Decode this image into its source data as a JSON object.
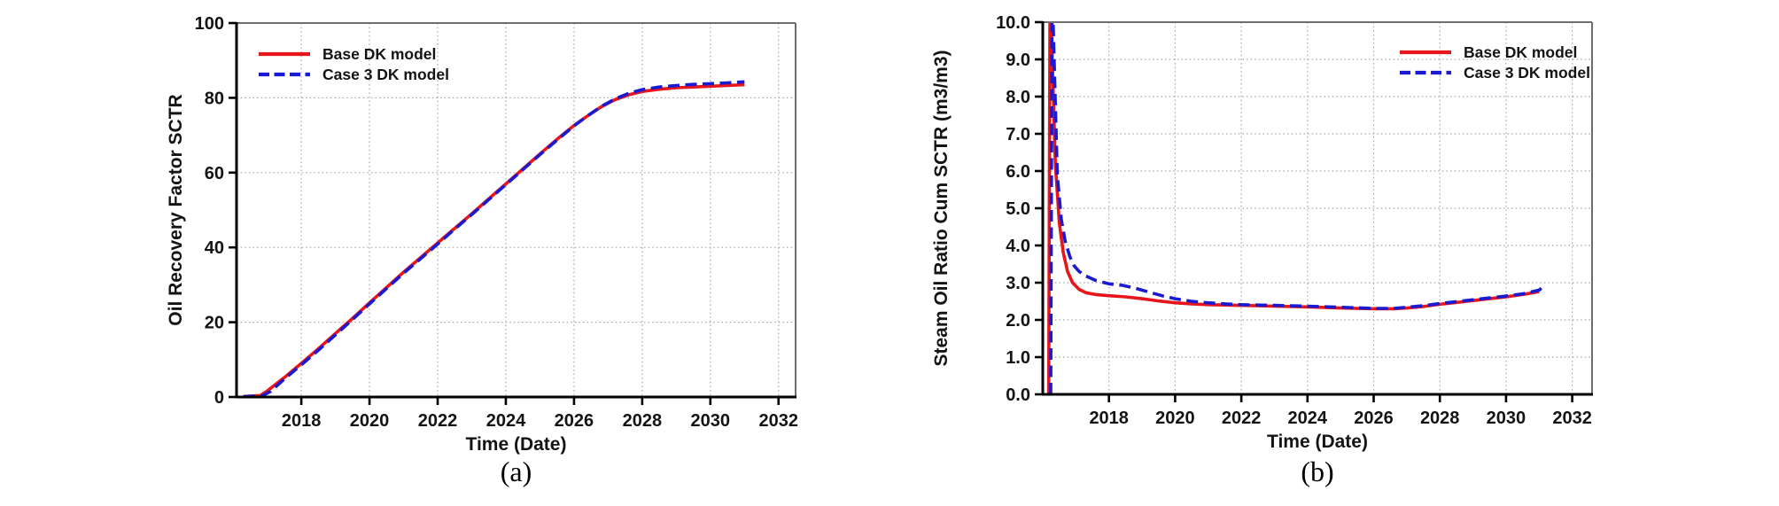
{
  "figure": {
    "background": "#ffffff",
    "text_color": "#141414",
    "grid_color": "#ababab",
    "axis_color": "#000000",
    "frame_color": "#6e6e6e"
  },
  "chart_data": [
    {
      "type": "line",
      "caption": "(a)",
      "xlabel": "Time (Date)",
      "ylabel": "Oil Recovery Factor SCTR",
      "xlim": [
        2016.1,
        2032.5
      ],
      "ylim": [
        0,
        100
      ],
      "x_ticks": [
        2018,
        2020,
        2022,
        2024,
        2026,
        2028,
        2030,
        2032
      ],
      "x_tick_labels": [
        "2018",
        "2020",
        "2022",
        "2024",
        "2026",
        "2028",
        "2030",
        "2032"
      ],
      "y_ticks": [
        0,
        20,
        40,
        60,
        80,
        100
      ],
      "y_tick_labels": [
        "0",
        "20",
        "40",
        "60",
        "80",
        "100"
      ],
      "grid": true,
      "legend_position": "top-left",
      "series": [
        {
          "name": "Base DK model",
          "color": "#e8151b",
          "style": "solid",
          "points": [
            [
              2016.3,
              0.15
            ],
            [
              2016.8,
              0.4
            ],
            [
              2017.0,
              1.6
            ],
            [
              2017.5,
              5.2
            ],
            [
              2018,
              9.0
            ],
            [
              2018.5,
              12.9
            ],
            [
              2019,
              17.0
            ],
            [
              2019.5,
              21.0
            ],
            [
              2020,
              25.2
            ],
            [
              2020.5,
              29.3
            ],
            [
              2021,
              33.4
            ],
            [
              2021.5,
              37.3
            ],
            [
              2022,
              41.2
            ],
            [
              2022.5,
              45.1
            ],
            [
              2023,
              49.0
            ],
            [
              2023.5,
              53.0
            ],
            [
              2024,
              57.0
            ],
            [
              2024.5,
              61.0
            ],
            [
              2025,
              65.0
            ],
            [
              2025.5,
              68.9
            ],
            [
              2026,
              72.6
            ],
            [
              2026.4,
              75.2
            ],
            [
              2026.8,
              77.6
            ],
            [
              2027.2,
              79.5
            ],
            [
              2027.6,
              80.8
            ],
            [
              2028,
              81.7
            ],
            [
              2028.5,
              82.3
            ],
            [
              2029,
              82.7
            ],
            [
              2029.5,
              82.9
            ],
            [
              2030,
              83.1
            ],
            [
              2030.5,
              83.3
            ],
            [
              2031,
              83.5
            ]
          ]
        },
        {
          "name": "Case 3 DK model",
          "color": "#1a1ad2",
          "style": "dashed",
          "points": [
            [
              2016.3,
              0.1
            ],
            [
              2016.85,
              0.3
            ],
            [
              2017.1,
              1.5
            ],
            [
              2017.5,
              4.8
            ],
            [
              2018,
              8.6
            ],
            [
              2018.5,
              12.5
            ],
            [
              2019,
              16.6
            ],
            [
              2019.5,
              20.7
            ],
            [
              2020,
              24.9
            ],
            [
              2020.5,
              29.0
            ],
            [
              2021,
              33.1
            ],
            [
              2021.5,
              37.0
            ],
            [
              2022,
              40.9
            ],
            [
              2022.5,
              44.9
            ],
            [
              2023,
              48.8
            ],
            [
              2023.5,
              52.8
            ],
            [
              2024,
              56.8
            ],
            [
              2024.5,
              60.8
            ],
            [
              2025,
              64.8
            ],
            [
              2025.5,
              68.7
            ],
            [
              2026,
              72.5
            ],
            [
              2026.4,
              75.2
            ],
            [
              2026.8,
              77.7
            ],
            [
              2027.2,
              79.7
            ],
            [
              2027.6,
              81.2
            ],
            [
              2028,
              82.2
            ],
            [
              2028.5,
              82.9
            ],
            [
              2029,
              83.3
            ],
            [
              2029.5,
              83.6
            ],
            [
              2030,
              83.8
            ],
            [
              2030.5,
              84.0
            ],
            [
              2031,
              84.3
            ]
          ]
        }
      ]
    },
    {
      "type": "line",
      "caption": "(b)",
      "xlabel": "Time (Date)",
      "ylabel": "Steam Oil Ratio Cum SCTR (m3/m3)",
      "xlim": [
        2016.0,
        2032.6
      ],
      "ylim": [
        0,
        10
      ],
      "x_ticks": [
        2018,
        2020,
        2022,
        2024,
        2026,
        2028,
        2030,
        2032
      ],
      "x_tick_labels": [
        "2018",
        "2020",
        "2022",
        "2024",
        "2026",
        "2028",
        "2030",
        "2032"
      ],
      "y_ticks": [
        0,
        1,
        2,
        3,
        4,
        5,
        6,
        7,
        8,
        9,
        10
      ],
      "y_tick_labels": [
        "0.0",
        "1.0",
        "2.0",
        "3.0",
        "4.0",
        "5.0",
        "6.0",
        "7.0",
        "8.0",
        "9.0",
        "10.0"
      ],
      "grid": true,
      "legend_position": "top-right",
      "series": [
        {
          "name": "Base DK model",
          "color": "#e8151b",
          "style": "solid",
          "points": [
            [
              2016.18,
              0
            ],
            [
              2016.22,
              11
            ],
            [
              2016.38,
              6.2
            ],
            [
              2016.5,
              4.6
            ],
            [
              2016.62,
              3.8
            ],
            [
              2016.75,
              3.3
            ],
            [
              2016.9,
              3.0
            ],
            [
              2017.1,
              2.82
            ],
            [
              2017.3,
              2.73
            ],
            [
              2017.6,
              2.68
            ],
            [
              2018,
              2.65
            ],
            [
              2018.5,
              2.62
            ],
            [
              2019,
              2.57
            ],
            [
              2019.5,
              2.51
            ],
            [
              2020,
              2.46
            ],
            [
              2020.5,
              2.43
            ],
            [
              2021,
              2.41
            ],
            [
              2022,
              2.39
            ],
            [
              2023,
              2.37
            ],
            [
              2024,
              2.35
            ],
            [
              2025,
              2.32
            ],
            [
              2026,
              2.3
            ],
            [
              2026.6,
              2.3
            ],
            [
              2027,
              2.32
            ],
            [
              2027.5,
              2.36
            ],
            [
              2028,
              2.42
            ],
            [
              2028.5,
              2.47
            ],
            [
              2029,
              2.52
            ],
            [
              2029.5,
              2.57
            ],
            [
              2030,
              2.62
            ],
            [
              2030.5,
              2.68
            ],
            [
              2031,
              2.76
            ]
          ]
        },
        {
          "name": "Case 3 DK model",
          "color": "#1a1ad2",
          "style": "dashed",
          "points": [
            [
              2016.24,
              0
            ],
            [
              2016.28,
              11
            ],
            [
              2016.44,
              5.9
            ],
            [
              2016.56,
              4.7
            ],
            [
              2016.68,
              4.1
            ],
            [
              2016.82,
              3.7
            ],
            [
              2016.95,
              3.45
            ],
            [
              2017.1,
              3.3
            ],
            [
              2017.3,
              3.18
            ],
            [
              2017.6,
              3.06
            ],
            [
              2018,
              2.97
            ],
            [
              2018.4,
              2.93
            ],
            [
              2018.8,
              2.85
            ],
            [
              2019.2,
              2.75
            ],
            [
              2019.6,
              2.65
            ],
            [
              2020,
              2.57
            ],
            [
              2020.5,
              2.5
            ],
            [
              2021,
              2.46
            ],
            [
              2021.5,
              2.43
            ],
            [
              2022,
              2.41
            ],
            [
              2023,
              2.39
            ],
            [
              2024,
              2.37
            ],
            [
              2025,
              2.34
            ],
            [
              2026,
              2.31
            ],
            [
              2026.6,
              2.31
            ],
            [
              2027,
              2.34
            ],
            [
              2027.5,
              2.38
            ],
            [
              2028,
              2.44
            ],
            [
              2028.5,
              2.49
            ],
            [
              2029,
              2.54
            ],
            [
              2029.5,
              2.59
            ],
            [
              2030,
              2.64
            ],
            [
              2030.5,
              2.7
            ],
            [
              2031,
              2.8
            ],
            [
              2031.08,
              2.86
            ]
          ]
        }
      ]
    }
  ]
}
